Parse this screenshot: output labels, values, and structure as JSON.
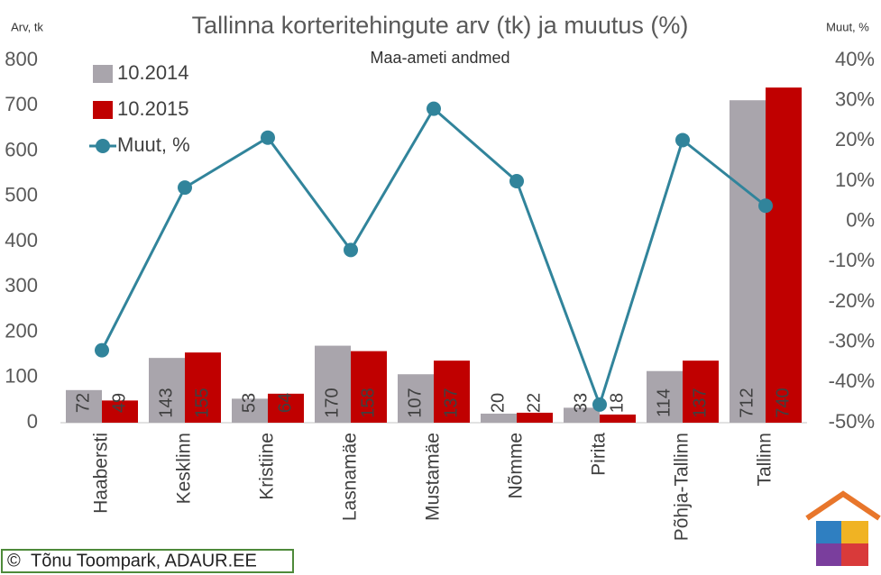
{
  "chart_data": {
    "type": "bar",
    "title": "Tallinna korteritehingute arv (tk) ja muutus (%)",
    "subtitle": "Maa-ameti andmed",
    "y_label": "Arv, tk",
    "y2_label": "Muut, %",
    "categories": [
      "Haabersti",
      "Kesklinn",
      "Kristiine",
      "Lasnamäe",
      "Mustamäe",
      "Nõmme",
      "Pirita",
      "Põhja-Tallinn",
      "Tallinn"
    ],
    "series": [
      {
        "name": "10.2014",
        "type": "bar",
        "color": "#a9a5ac",
        "values": [
          72,
          143,
          53,
          170,
          107,
          20,
          33,
          114,
          712
        ]
      },
      {
        "name": "10.2015",
        "type": "bar",
        "color": "#c00000",
        "values": [
          49,
          155,
          64,
          158,
          137,
          22,
          18,
          137,
          740
        ]
      },
      {
        "name": "Muut, %",
        "type": "line",
        "axis": "y2",
        "color": "#31849b",
        "values": [
          -32,
          8.4,
          20.8,
          -7.1,
          28,
          10,
          -45.5,
          20.2,
          3.9
        ]
      }
    ],
    "ylim": [
      0,
      800
    ],
    "yticks": [
      0,
      100,
      200,
      300,
      400,
      500,
      600,
      700,
      800
    ],
    "y2lim": [
      -50,
      40
    ],
    "y2ticks": [
      {
        "value": -50,
        "label": "-50%"
      },
      {
        "value": -40,
        "label": "-40%"
      },
      {
        "value": -30,
        "label": "-30%"
      },
      {
        "value": -20,
        "label": "-20%"
      },
      {
        "value": -10,
        "label": "-10%"
      },
      {
        "value": 0,
        "label": "0%"
      },
      {
        "value": 10,
        "label": "10%"
      },
      {
        "value": 20,
        "label": "20%"
      },
      {
        "value": 30,
        "label": "30%"
      },
      {
        "value": 40,
        "label": "40%"
      }
    ],
    "grid": false,
    "legend": "top-left"
  },
  "footer": {
    "symbol": "©",
    "text": "Tõnu Toompark, ADAUR.EE"
  }
}
